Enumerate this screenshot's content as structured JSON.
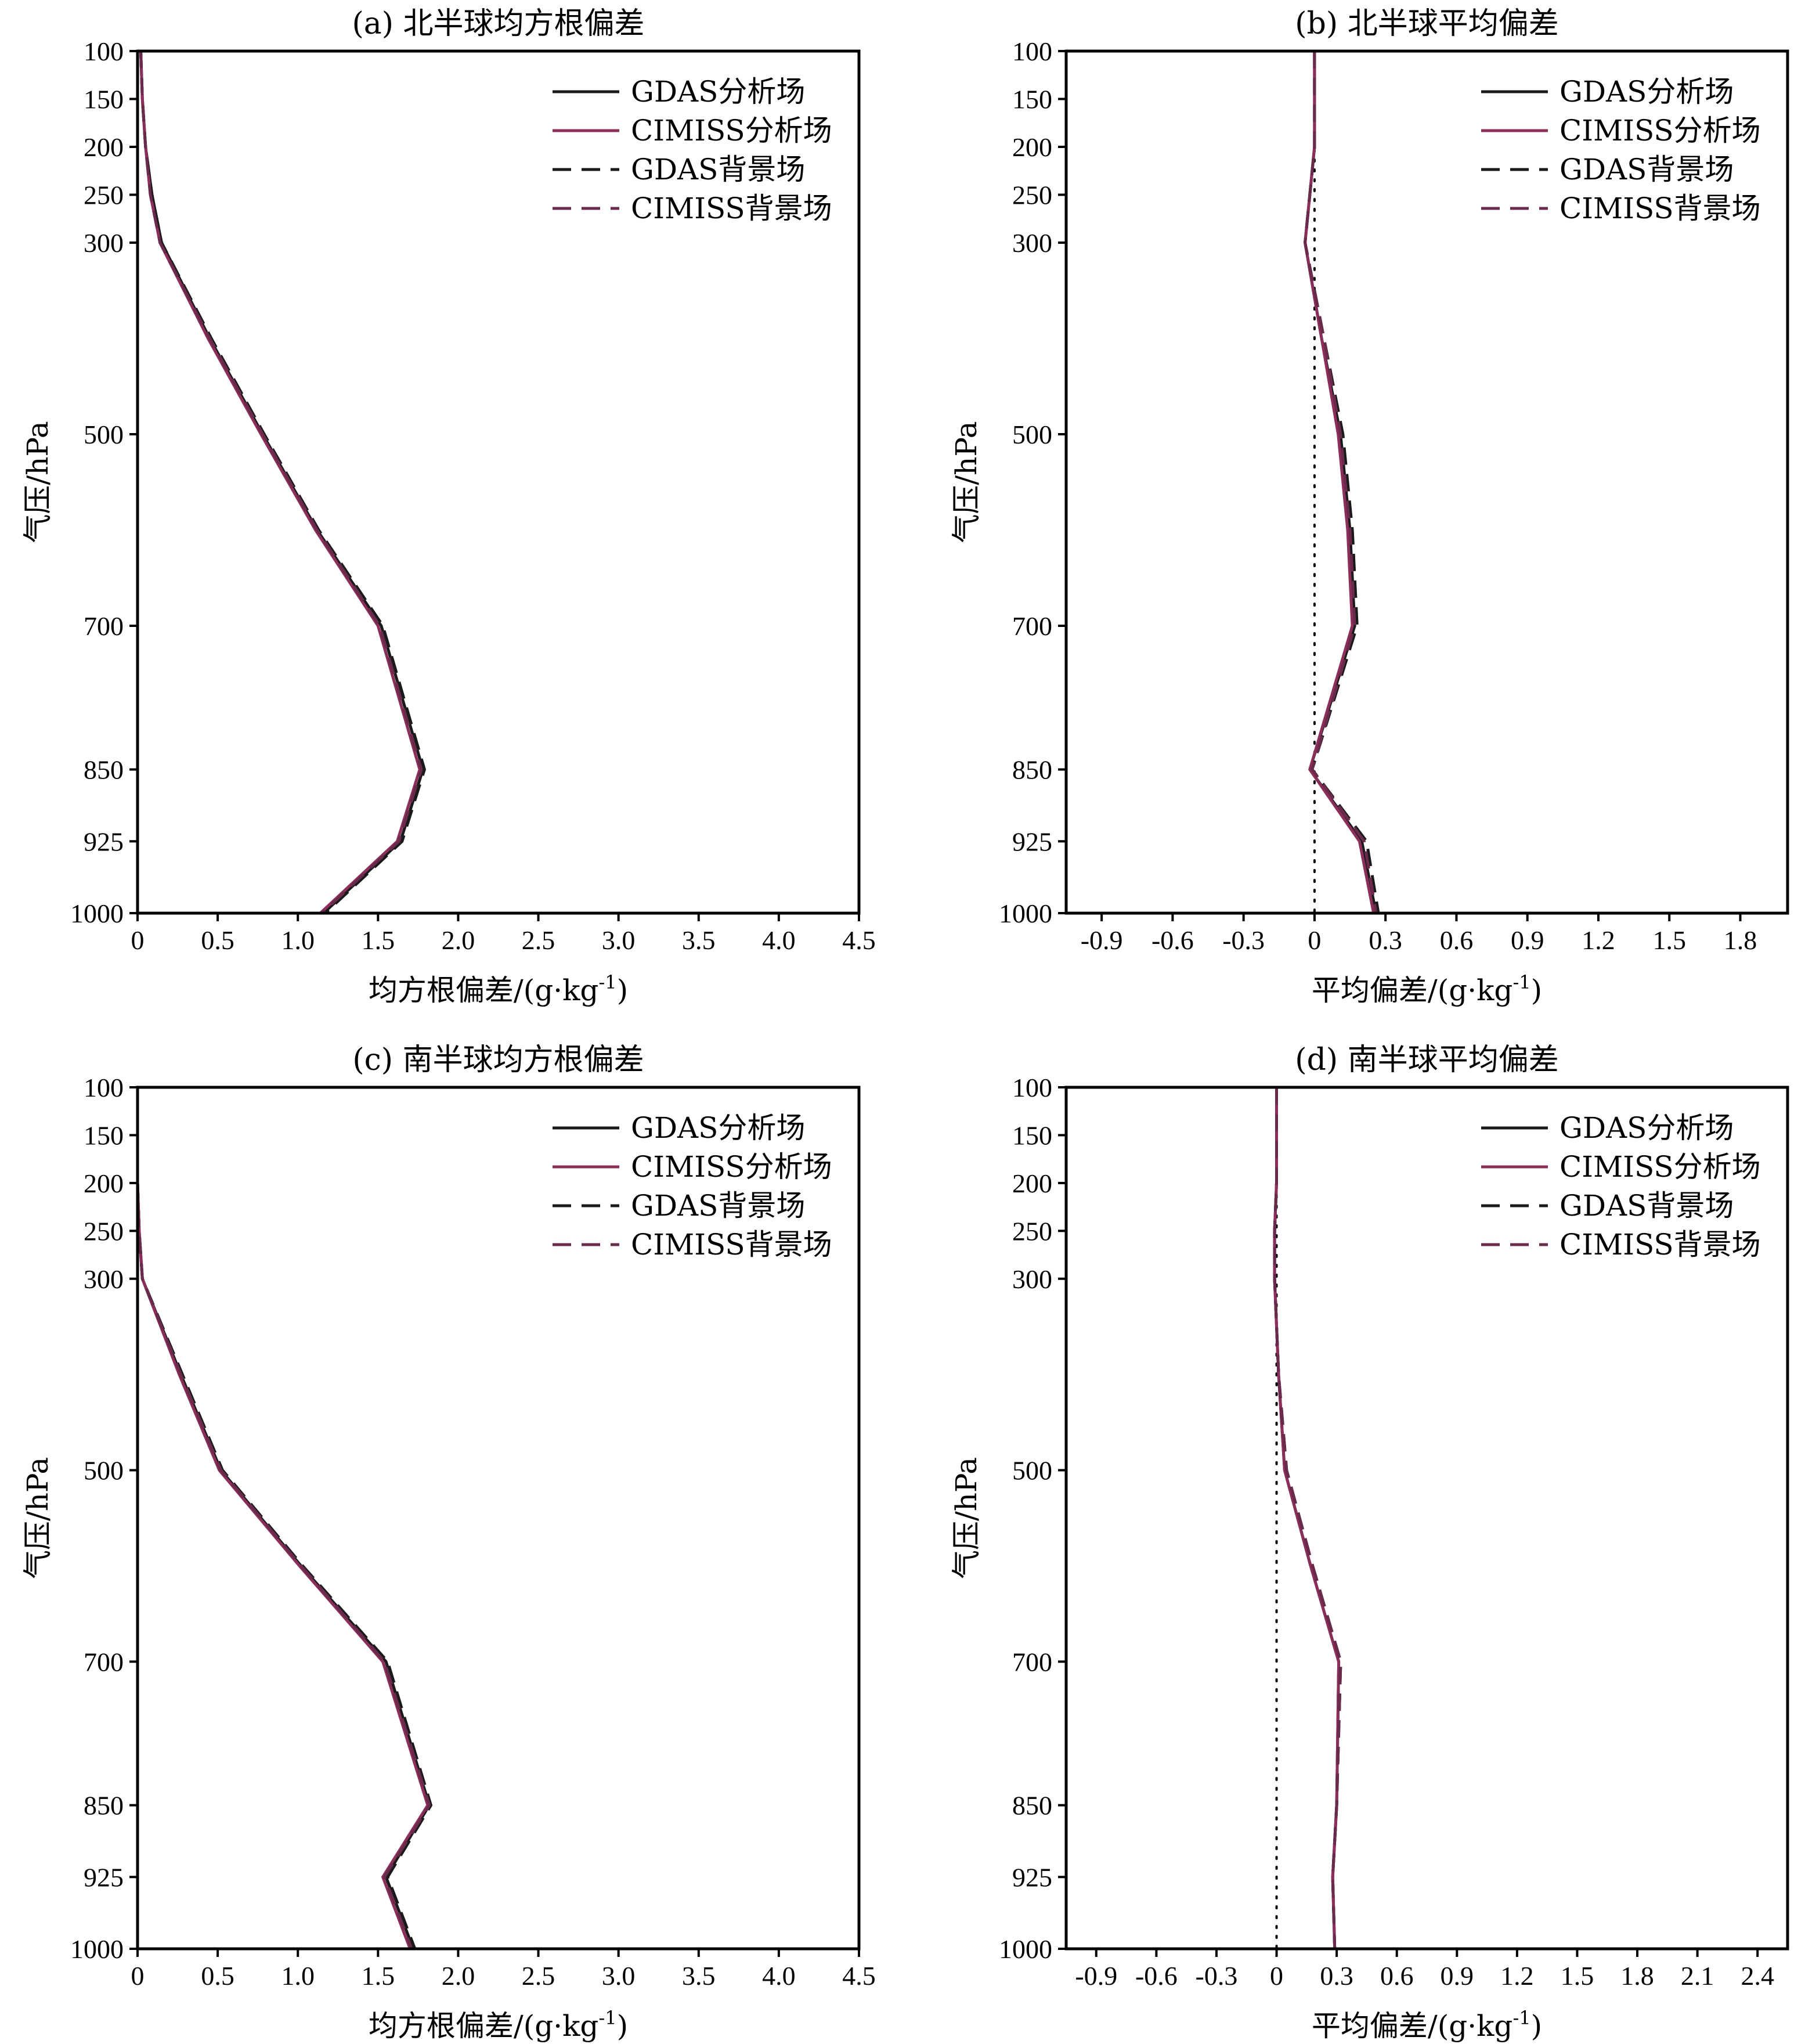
{
  "colors": {
    "gdas": "#1a1a1a",
    "cimiss": "#8c2e5a",
    "cimiss_bg": "#6a2a4c",
    "axis": "#000000"
  },
  "legend_entries": [
    "GDAS分析场",
    "CIMISS分析场",
    "GDAS背景场",
    "CIMISS背景场"
  ],
  "chart_data": [
    {
      "type": "line",
      "title": "(a) 北半球均方根偏差",
      "xlabel": "均方根偏差/(g·kg",
      "xlabel_sup": "-1",
      "xlabel_end": ")",
      "ylabel": "气压/hPa",
      "xlim": [
        0,
        4.5
      ],
      "ylim": [
        100,
        1000
      ],
      "xticks": [
        0,
        0.5,
        1.0,
        1.5,
        2.0,
        2.5,
        3.0,
        3.5,
        4.0,
        4.5
      ],
      "xtick_labels": [
        "0",
        "0.5",
        "1.0",
        "1.5",
        "2.0",
        "2.5",
        "3.0",
        "3.5",
        "4.0",
        "4.5"
      ],
      "yticks": [
        100,
        150,
        200,
        250,
        300,
        500,
        700,
        850,
        925,
        1000
      ],
      "ytick_labels": [
        "100",
        "150",
        "200",
        "250",
        "300",
        "500",
        "700",
        "850",
        "925",
        "1000"
      ],
      "zero_line": false,
      "y": [
        100,
        150,
        200,
        250,
        300,
        400,
        500,
        600,
        700,
        850,
        925,
        1000
      ],
      "series": [
        {
          "name": "GDAS分析场",
          "style": "solid",
          "color_key": "gdas",
          "x": [
            0.02,
            0.03,
            0.05,
            0.09,
            0.15,
            0.45,
            0.78,
            1.12,
            1.52,
            1.78,
            1.64,
            1.16
          ]
        },
        {
          "name": "CIMISS分析场",
          "style": "solid",
          "color_key": "cimiss",
          "x": [
            0.02,
            0.03,
            0.05,
            0.08,
            0.14,
            0.44,
            0.77,
            1.11,
            1.5,
            1.76,
            1.62,
            1.14
          ]
        },
        {
          "name": "GDAS背景场",
          "style": "dash",
          "color_key": "gdas",
          "x": [
            0.02,
            0.03,
            0.05,
            0.09,
            0.15,
            0.46,
            0.79,
            1.13,
            1.53,
            1.79,
            1.65,
            1.17
          ]
        },
        {
          "name": "CIMISS背景场",
          "style": "dash",
          "color_key": "cimiss_bg",
          "x": [
            0.02,
            0.03,
            0.05,
            0.08,
            0.14,
            0.45,
            0.78,
            1.12,
            1.51,
            1.77,
            1.63,
            1.15
          ]
        }
      ]
    },
    {
      "type": "line",
      "title": "(b) 北半球平均偏差",
      "xlabel": "平均偏差/(g·kg",
      "xlabel_sup": "-1",
      "xlabel_end": ")",
      "ylabel": "气压/hPa",
      "xlim": [
        -1.05,
        2.0
      ],
      "ylim": [
        100,
        1000
      ],
      "xticks": [
        -0.9,
        -0.6,
        -0.3,
        0,
        0.3,
        0.6,
        0.9,
        1.2,
        1.5,
        1.8
      ],
      "xtick_labels": [
        "-0.9",
        "-0.6",
        "-0.3",
        "0",
        "0.3",
        "0.6",
        "0.9",
        "1.2",
        "1.5",
        "1.8"
      ],
      "yticks": [
        100,
        150,
        200,
        250,
        300,
        500,
        700,
        850,
        925,
        1000
      ],
      "ytick_labels": [
        "100",
        "150",
        "200",
        "250",
        "300",
        "500",
        "700",
        "850",
        "925",
        "1000"
      ],
      "zero_line": true,
      "y": [
        100,
        150,
        200,
        250,
        300,
        400,
        500,
        600,
        700,
        850,
        925,
        1000
      ],
      "series": [
        {
          "name": "GDAS分析场",
          "style": "solid",
          "color_key": "gdas",
          "x": [
            0.0,
            0.0,
            0.0,
            -0.02,
            -0.04,
            0.03,
            0.11,
            0.15,
            0.17,
            -0.02,
            0.2,
            0.26
          ]
        },
        {
          "name": "CIMISS分析场",
          "style": "solid",
          "color_key": "cimiss",
          "x": [
            0.0,
            0.0,
            0.0,
            -0.02,
            -0.04,
            0.03,
            0.1,
            0.14,
            0.16,
            -0.02,
            0.19,
            0.25
          ]
        },
        {
          "name": "GDAS背景场",
          "style": "dash",
          "color_key": "gdas",
          "x": [
            0.0,
            0.0,
            0.0,
            -0.02,
            -0.04,
            0.04,
            0.12,
            0.16,
            0.18,
            -0.01,
            0.22,
            0.27
          ]
        },
        {
          "name": "CIMISS背景场",
          "style": "dash",
          "color_key": "cimiss_bg",
          "x": [
            0.0,
            0.0,
            0.0,
            -0.02,
            -0.04,
            0.04,
            0.11,
            0.15,
            0.17,
            -0.01,
            0.21,
            0.26
          ]
        }
      ]
    },
    {
      "type": "line",
      "title": "(c) 南半球均方根偏差",
      "xlabel": "均方根偏差/(g·kg",
      "xlabel_sup": "-1",
      "xlabel_end": ")",
      "ylabel": "气压/hPa",
      "xlim": [
        0,
        4.5
      ],
      "ylim": [
        100,
        1000
      ],
      "xticks": [
        0,
        0.5,
        1.0,
        1.5,
        2.0,
        2.5,
        3.0,
        3.5,
        4.0,
        4.5
      ],
      "xtick_labels": [
        "0",
        "0.5",
        "1.0",
        "1.5",
        "2.0",
        "2.5",
        "3.0",
        "3.5",
        "4.0",
        "4.5"
      ],
      "yticks": [
        100,
        150,
        200,
        250,
        300,
        500,
        700,
        850,
        925,
        1000
      ],
      "ytick_labels": [
        "100",
        "150",
        "200",
        "250",
        "300",
        "500",
        "700",
        "850",
        "925",
        "1000"
      ],
      "zero_line": false,
      "y": [
        200,
        250,
        300,
        400,
        500,
        600,
        700,
        850,
        925,
        1000
      ],
      "series": [
        {
          "name": "GDAS分析场",
          "style": "solid",
          "color_key": "gdas",
          "x": [
            0.0,
            0.01,
            0.03,
            0.27,
            0.52,
            1.02,
            1.55,
            1.82,
            1.55,
            1.72
          ]
        },
        {
          "name": "CIMISS分析场",
          "style": "solid",
          "color_key": "cimiss",
          "x": [
            0.0,
            0.01,
            0.03,
            0.26,
            0.51,
            1.01,
            1.53,
            1.81,
            1.53,
            1.7
          ]
        },
        {
          "name": "GDAS背景场",
          "style": "dash",
          "color_key": "gdas",
          "x": [
            0.0,
            0.01,
            0.03,
            0.28,
            0.53,
            1.03,
            1.56,
            1.83,
            1.56,
            1.73
          ]
        },
        {
          "name": "CIMISS背景场",
          "style": "dash",
          "color_key": "cimiss_bg",
          "x": [
            0.0,
            0.01,
            0.03,
            0.27,
            0.52,
            1.02,
            1.54,
            1.82,
            1.54,
            1.71
          ]
        }
      ]
    },
    {
      "type": "line",
      "title": "(d) 南半球平均偏差",
      "xlabel": "平均偏差/(g·kg",
      "xlabel_sup": "-1",
      "xlabel_end": ")",
      "ylabel": "气压/hPa",
      "xlim": [
        -1.05,
        2.55
      ],
      "ylim": [
        100,
        1000
      ],
      "xticks": [
        -0.9,
        -0.6,
        -0.3,
        0,
        0.3,
        0.6,
        0.9,
        1.2,
        1.5,
        1.8,
        2.1,
        2.4
      ],
      "xtick_labels": [
        "-0.9",
        "-0.6",
        "-0.3",
        "0",
        "0.3",
        "0.6",
        "0.9",
        "1.2",
        "1.5",
        "1.8",
        "2.1",
        "2.4"
      ],
      "yticks": [
        100,
        150,
        200,
        250,
        300,
        500,
        700,
        850,
        925,
        1000
      ],
      "ytick_labels": [
        "100",
        "150",
        "200",
        "250",
        "300",
        "500",
        "700",
        "850",
        "925",
        "1000"
      ],
      "zero_line": true,
      "y": [
        100,
        150,
        200,
        250,
        300,
        400,
        500,
        600,
        700,
        850,
        925,
        1000
      ],
      "series": [
        {
          "name": "GDAS分析场",
          "style": "solid",
          "color_key": "gdas",
          "x": [
            0.0,
            0.0,
            0.0,
            -0.01,
            -0.01,
            0.01,
            0.04,
            0.17,
            0.31,
            0.3,
            0.28,
            0.29
          ]
        },
        {
          "name": "CIMISS分析场",
          "style": "solid",
          "color_key": "cimiss",
          "x": [
            0.0,
            0.0,
            0.0,
            -0.01,
            -0.01,
            0.01,
            0.04,
            0.17,
            0.31,
            0.3,
            0.28,
            0.29
          ]
        },
        {
          "name": "GDAS背景场",
          "style": "dash",
          "color_key": "gdas",
          "x": [
            0.0,
            0.0,
            0.0,
            -0.01,
            -0.01,
            0.01,
            0.05,
            0.18,
            0.32,
            0.3,
            0.28,
            0.29
          ]
        },
        {
          "name": "CIMISS背景场",
          "style": "dash",
          "color_key": "cimiss_bg",
          "x": [
            0.0,
            0.0,
            0.0,
            -0.01,
            -0.01,
            0.01,
            0.05,
            0.18,
            0.32,
            0.3,
            0.28,
            0.29
          ]
        }
      ]
    }
  ]
}
